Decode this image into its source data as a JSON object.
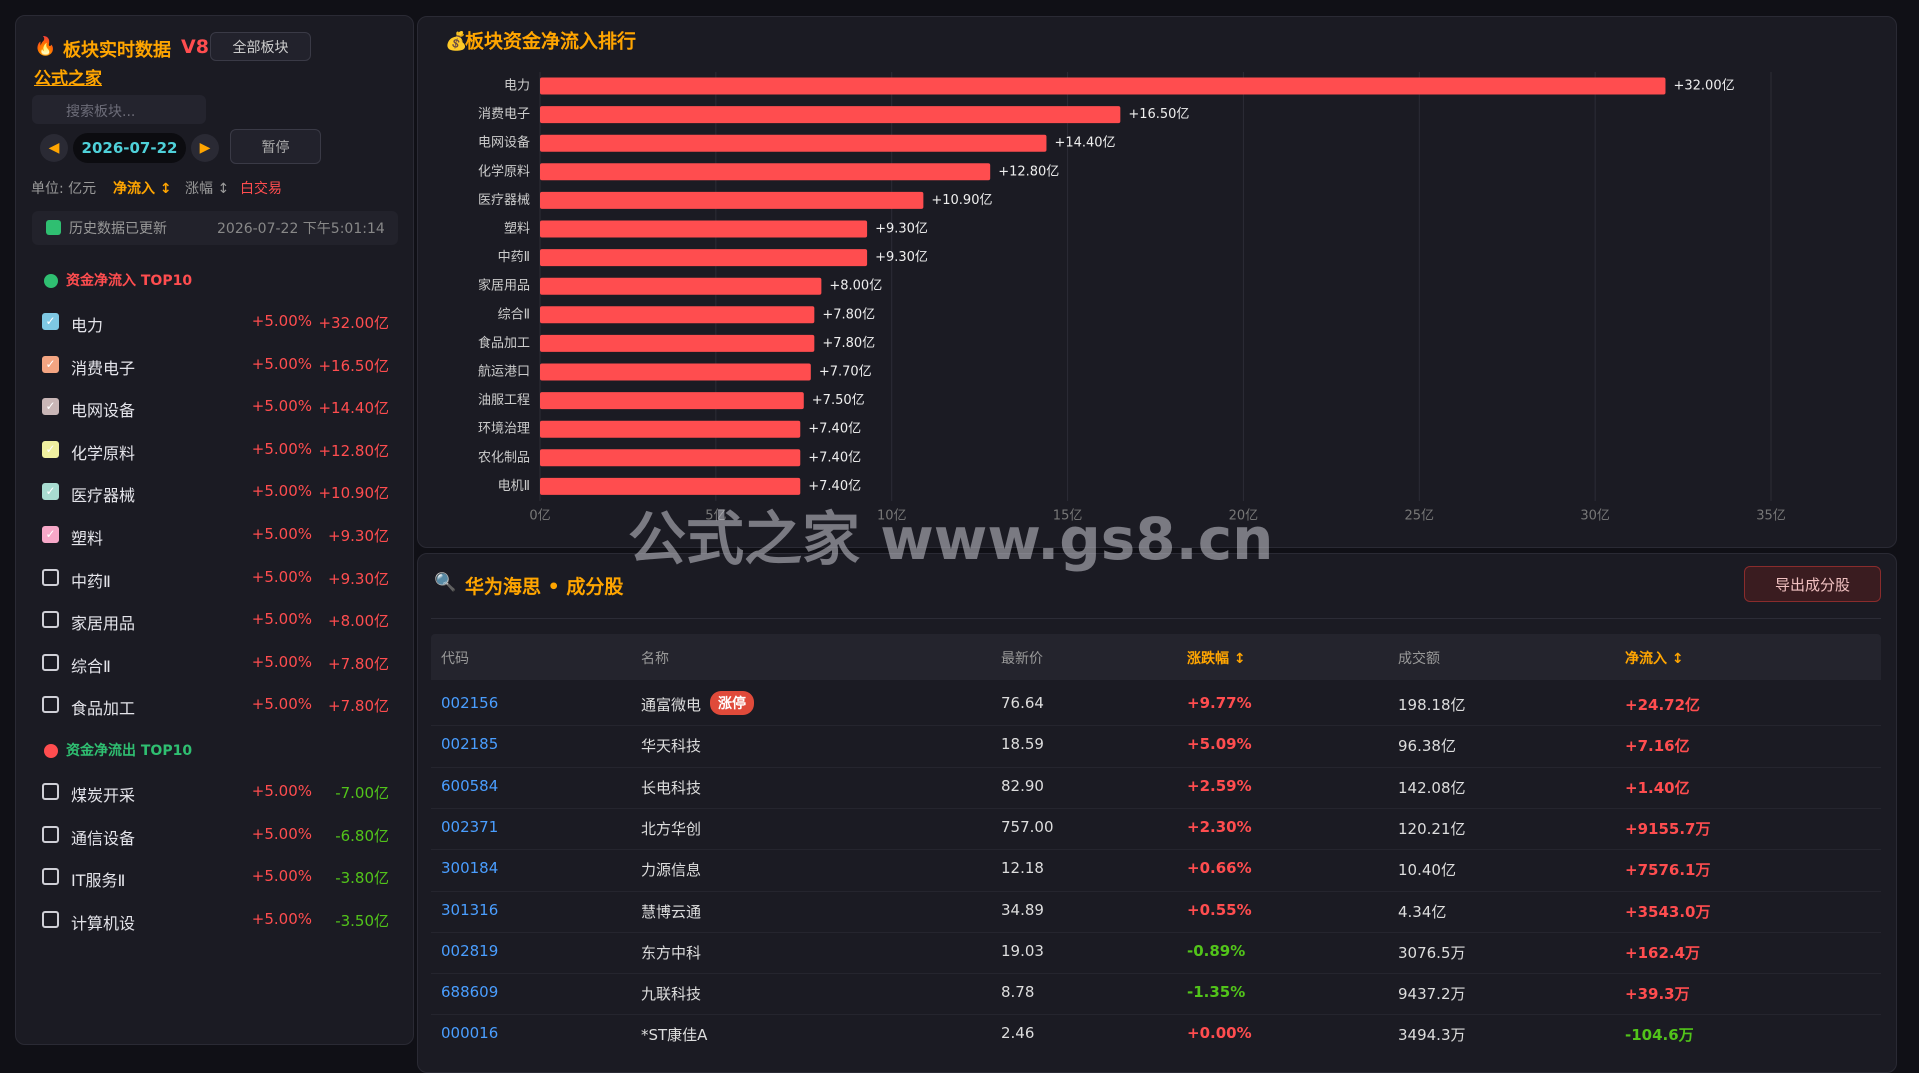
{
  "sidebar": {
    "title": "板块实时数据",
    "version": "V8",
    "all_button": "全部板块",
    "brand": "公式之家",
    "search_placeholder": "搜索板块...",
    "date": "2026-07-22",
    "pause_button": "暂停",
    "unit_label": "单位: 亿元",
    "sort_inflow": "净流入 ↕",
    "sort_change": "涨幅 ↕",
    "mode": "白交易",
    "history_label": "历史数据已更新",
    "timestamp": "2026-07-22 下午5:01:14",
    "inflow": {
      "title": "资金净流入 TOP10",
      "items": [
        {
          "name": "电力",
          "change": "+5.00%",
          "flow": "+32.00亿",
          "checked": true,
          "color": "#7ec8e3"
        },
        {
          "name": "消费电子",
          "change": "+5.00%",
          "flow": "+16.50亿",
          "checked": true,
          "color": "#f4a582"
        },
        {
          "name": "电网设备",
          "change": "+5.00%",
          "flow": "+14.40亿",
          "checked": true,
          "color": "#c9b6b6"
        },
        {
          "name": "化学原料",
          "change": "+5.00%",
          "flow": "+12.80亿",
          "checked": true,
          "color": "#f0f0a0"
        },
        {
          "name": "医疗器械",
          "change": "+5.00%",
          "flow": "+10.90亿",
          "checked": true,
          "color": "#a8dcd1"
        },
        {
          "name": "塑料",
          "change": "+5.00%",
          "flow": "+9.30亿",
          "checked": true,
          "color": "#f7a8c8"
        },
        {
          "name": "中药Ⅱ",
          "change": "+5.00%",
          "flow": "+9.30亿",
          "checked": false
        },
        {
          "name": "家居用品",
          "change": "+5.00%",
          "flow": "+8.00亿",
          "checked": false
        },
        {
          "name": "综合Ⅱ",
          "change": "+5.00%",
          "flow": "+7.80亿",
          "checked": false
        },
        {
          "name": "食品加工",
          "change": "+5.00%",
          "flow": "+7.80亿",
          "checked": false
        }
      ]
    },
    "outflow": {
      "title": "资金净流出 TOP10",
      "items": [
        {
          "name": "煤炭开采",
          "change": "+5.00%",
          "flow": "-7.00亿",
          "checked": false
        },
        {
          "name": "通信设备",
          "change": "+5.00%",
          "flow": "-6.80亿",
          "checked": false
        },
        {
          "name": "IT服务Ⅱ",
          "change": "+5.00%",
          "flow": "-3.80亿",
          "checked": false
        },
        {
          "name": "计算机设",
          "change": "+5.00%",
          "flow": "-3.50亿",
          "checked": false
        }
      ]
    }
  },
  "chart_data": {
    "type": "hbar",
    "title": "板块资金净流入排行",
    "categories": [
      "电力",
      "消费电子",
      "电网设备",
      "化学原料",
      "医疗器械",
      "塑料",
      "中药Ⅱ",
      "家居用品",
      "综合Ⅱ",
      "食品加工",
      "航运港口",
      "油服工程",
      "环境治理",
      "农化制品",
      "电机Ⅱ"
    ],
    "values": [
      32,
      16.5,
      14.4,
      12.8,
      10.9,
      9.3,
      9.3,
      8.0,
      7.8,
      7.8,
      7.7,
      7.5,
      7.4,
      7.4,
      7.4
    ],
    "value_labels": [
      "+32.00亿",
      "+16.50亿",
      "+14.40亿",
      "+12.80亿",
      "+10.90亿",
      "+9.30亿",
      "+9.30亿",
      "+8.00亿",
      "+7.80亿",
      "+7.80亿",
      "+7.70亿",
      "+7.50亿",
      "+7.40亿",
      "+7.40亿",
      "+7.40亿"
    ],
    "color": "#ff4d4f",
    "xlim": [
      0,
      35
    ],
    "xticks": [
      {
        "value": 0,
        "label": "0亿"
      },
      {
        "value": 5,
        "label": "5亿"
      },
      {
        "value": 10,
        "label": "10亿"
      },
      {
        "value": 15,
        "label": "15亿"
      },
      {
        "value": 20,
        "label": "20亿"
      },
      {
        "value": 25,
        "label": "25亿"
      },
      {
        "value": 30,
        "label": "30亿"
      },
      {
        "value": 35,
        "label": "35亿"
      }
    ],
    "grid": true
  },
  "watermark": "公式之家 www.gs8.cn",
  "table": {
    "title": "华为海思 • 成分股",
    "export_button": "导出成分股",
    "headers": [
      "代码",
      "名称",
      "最新价",
      "涨跌幅 ↕",
      "成交额",
      "净流入 ↕"
    ],
    "rows": [
      {
        "code": "002156",
        "name": "通富微电",
        "tag": "涨停",
        "price": "76.64",
        "change": "+9.77%",
        "amount": "198.18亿",
        "flow": "+24.72亿"
      },
      {
        "code": "002185",
        "name": "华天科技",
        "price": "18.59",
        "change": "+5.09%",
        "amount": "96.38亿",
        "flow": "+7.16亿"
      },
      {
        "code": "600584",
        "name": "长电科技",
        "price": "82.90",
        "change": "+2.59%",
        "amount": "142.08亿",
        "flow": "+1.40亿"
      },
      {
        "code": "002371",
        "name": "北方华创",
        "price": "757.00",
        "change": "+2.30%",
        "amount": "120.21亿",
        "flow": "+9155.7万"
      },
      {
        "code": "300184",
        "name": "力源信息",
        "price": "12.18",
        "change": "+0.66%",
        "amount": "10.40亿",
        "flow": "+7576.1万"
      },
      {
        "code": "301316",
        "name": "慧博云通",
        "price": "34.89",
        "change": "+0.55%",
        "amount": "4.34亿",
        "flow": "+3543.0万"
      },
      {
        "code": "002819",
        "name": "东方中科",
        "price": "19.03",
        "change": "-0.89%",
        "amount": "3076.5万",
        "flow": "+162.4万"
      },
      {
        "code": "688609",
        "name": "九联科技",
        "price": "8.78",
        "change": "-1.35%",
        "amount": "9437.2万",
        "flow": "+39.3万"
      },
      {
        "code": "000016",
        "name": "*ST康佳A",
        "price": "2.46",
        "change": "+0.00%",
        "amount": "3494.3万",
        "flow": "-104.6万"
      }
    ]
  }
}
